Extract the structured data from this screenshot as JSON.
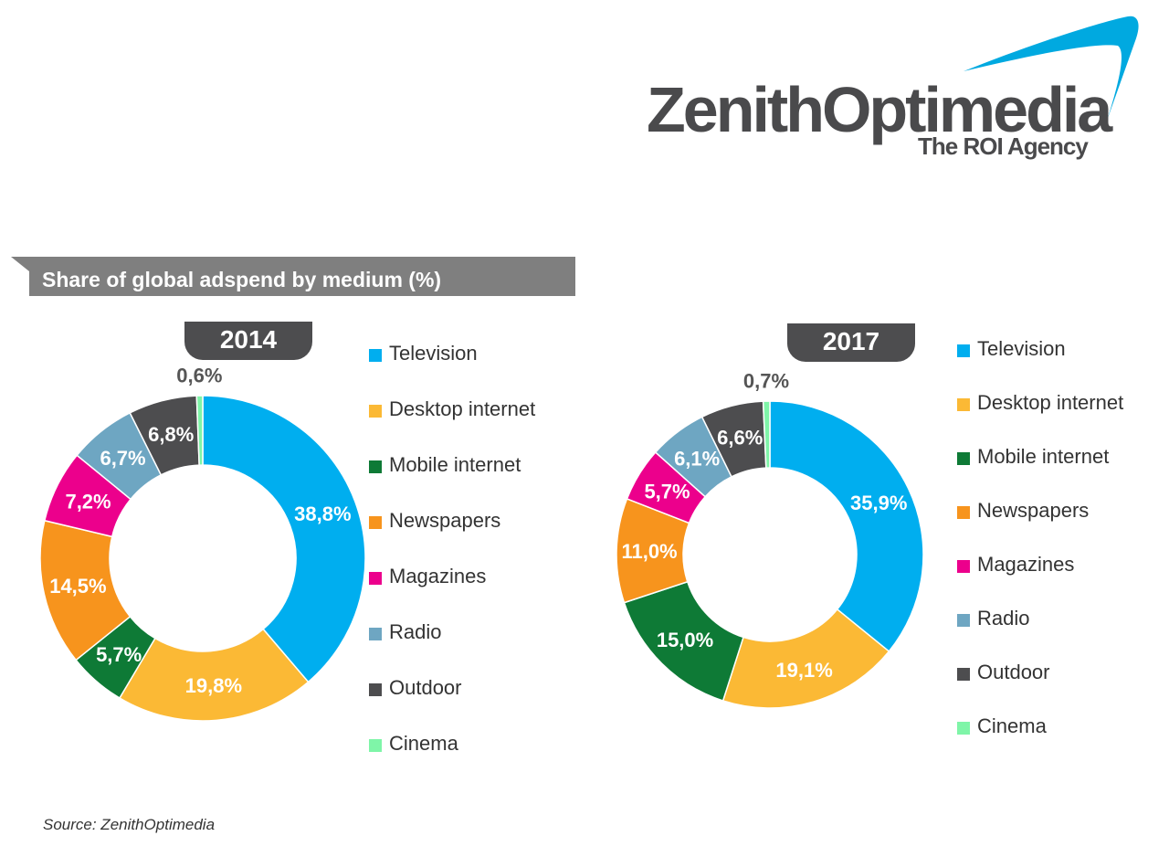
{
  "logo": {
    "name": "ZenithOptimedia",
    "tagline": "The ROI Agency",
    "swoosh_color": "#00a9e0"
  },
  "header": {
    "title": "Share of global adspend by medium (%)"
  },
  "chart_data": [
    {
      "type": "pie",
      "subtype": "donut",
      "title": "2014",
      "categories": [
        "Television",
        "Desktop internet",
        "Mobile internet",
        "Newspapers",
        "Magazines",
        "Radio",
        "Outdoor",
        "Cinema"
      ],
      "values": [
        38.8,
        19.8,
        5.7,
        14.5,
        7.2,
        6.7,
        6.8,
        0.6
      ],
      "labels": [
        "38,8%",
        "19,8%",
        "5,7%",
        "14,5%",
        "7,2%",
        "6,7%",
        "6,8%",
        "0,6%"
      ],
      "colors": [
        "#00aeef",
        "#fbb935",
        "#0e7a36",
        "#f7941d",
        "#ec008c",
        "#6ea6c2",
        "#4d4d4f",
        "#7ff5a8"
      ],
      "legend_position": "right"
    },
    {
      "type": "pie",
      "subtype": "donut",
      "title": "2017",
      "categories": [
        "Television",
        "Desktop internet",
        "Mobile internet",
        "Newspapers",
        "Magazines",
        "Radio",
        "Outdoor",
        "Cinema"
      ],
      "values": [
        35.9,
        19.1,
        15.0,
        11.0,
        5.7,
        6.1,
        6.6,
        0.7
      ],
      "labels": [
        "35,9%",
        "19,1%",
        "15,0%",
        "11,0%",
        "5,7%",
        "6,1%",
        "6,6%",
        "0,7%"
      ],
      "colors": [
        "#00aeef",
        "#fbb935",
        "#0e7a36",
        "#f7941d",
        "#ec008c",
        "#6ea6c2",
        "#4d4d4f",
        "#7ff5a8"
      ],
      "legend_position": "right"
    }
  ],
  "footer": {
    "source": "Source: ZenithOptimedia"
  }
}
